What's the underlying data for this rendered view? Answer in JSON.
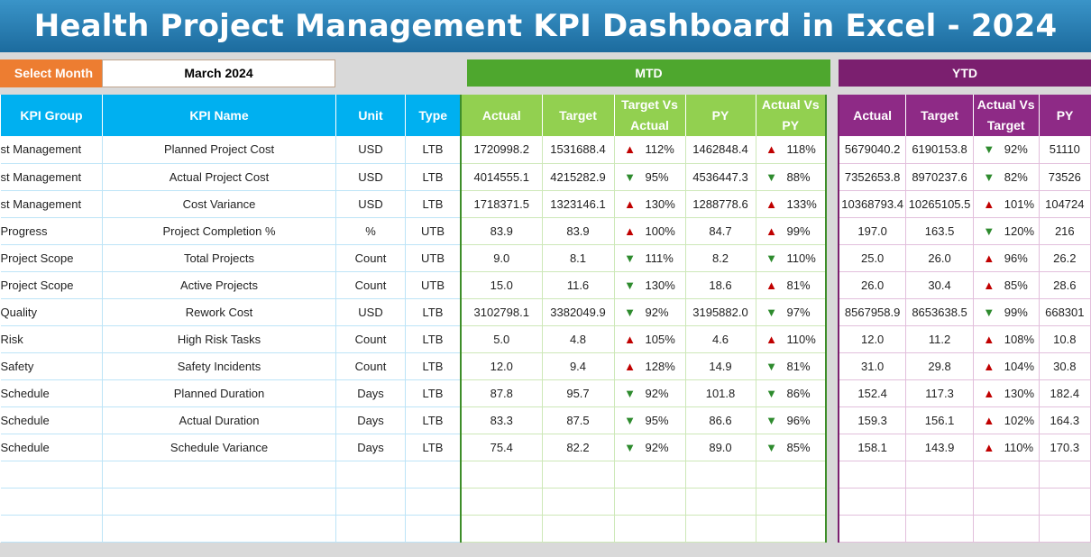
{
  "title": "Health Project Management KPI Dashboard in Excel - 2024",
  "select_month": {
    "label": "Select Month",
    "value": "March 2024"
  },
  "sections": {
    "mtd": "MTD",
    "ytd": "YTD"
  },
  "colors": {
    "up_arrow": "#c00000",
    "down_arrow": "#2e8b2e",
    "kpi_header": "#00b0f0",
    "mtd_header": "#92d050",
    "ytd_header": "#8e2a86",
    "title_bar": "#1c6b9e",
    "select_month_label": "#ed7d31"
  },
  "kpi_table": {
    "headers": [
      "KPI Group",
      "KPI Name",
      "Unit",
      "Type"
    ],
    "rows": [
      [
        "st Management",
        "Planned Project Cost",
        "USD",
        "LTB"
      ],
      [
        "st Management",
        "Actual Project Cost",
        "USD",
        "LTB"
      ],
      [
        "st Management",
        "Cost Variance",
        "USD",
        "LTB"
      ],
      [
        "Progress",
        "Project Completion %",
        "%",
        "UTB"
      ],
      [
        "Project Scope",
        "Total Projects",
        "Count",
        "UTB"
      ],
      [
        "Project Scope",
        "Active Projects",
        "Count",
        "UTB"
      ],
      [
        "Quality",
        "Rework Cost",
        "USD",
        "LTB"
      ],
      [
        "Risk",
        "High Risk Tasks",
        "Count",
        "LTB"
      ],
      [
        "Safety",
        "Safety Incidents",
        "Count",
        "LTB"
      ],
      [
        "Schedule",
        "Planned Duration",
        "Days",
        "LTB"
      ],
      [
        "Schedule",
        "Actual Duration",
        "Days",
        "LTB"
      ],
      [
        "Schedule",
        "Schedule Variance",
        "Days",
        "LTB"
      ]
    ]
  },
  "mtd_table": {
    "headers": [
      "Actual",
      "Target",
      "Target Vs Actual",
      "PY",
      "Actual Vs PY"
    ],
    "rows": [
      [
        "1720998.2",
        "1531688.4",
        "up",
        "112%",
        "1462848.4",
        "up",
        "118%"
      ],
      [
        "4014555.1",
        "4215282.9",
        "down",
        "95%",
        "4536447.3",
        "down",
        "88%"
      ],
      [
        "1718371.5",
        "1323146.1",
        "up",
        "130%",
        "1288778.6",
        "up",
        "133%"
      ],
      [
        "83.9",
        "83.9",
        "up",
        "100%",
        "84.7",
        "up",
        "99%"
      ],
      [
        "9.0",
        "8.1",
        "down",
        "111%",
        "8.2",
        "down",
        "110%"
      ],
      [
        "15.0",
        "11.6",
        "down",
        "130%",
        "18.6",
        "up",
        "81%"
      ],
      [
        "3102798.1",
        "3382049.9",
        "down",
        "92%",
        "3195882.0",
        "down",
        "97%"
      ],
      [
        "5.0",
        "4.8",
        "up",
        "105%",
        "4.6",
        "up",
        "110%"
      ],
      [
        "12.0",
        "9.4",
        "up",
        "128%",
        "14.9",
        "down",
        "81%"
      ],
      [
        "87.8",
        "95.7",
        "down",
        "92%",
        "101.8",
        "down",
        "86%"
      ],
      [
        "83.3",
        "87.5",
        "down",
        "95%",
        "86.6",
        "down",
        "96%"
      ],
      [
        "75.4",
        "82.2",
        "down",
        "92%",
        "89.0",
        "down",
        "85%"
      ]
    ]
  },
  "ytd_table": {
    "headers": [
      "Actual",
      "Target",
      "Actual Vs Target",
      "PY"
    ],
    "rows": [
      [
        "5679040.2",
        "6190153.8",
        "down",
        "92%",
        "51110"
      ],
      [
        "7352653.8",
        "8970237.6",
        "down",
        "82%",
        "73526"
      ],
      [
        "10368793.4",
        "10265105.5",
        "up",
        "101%",
        "104724"
      ],
      [
        "197.0",
        "163.5",
        "down",
        "120%",
        "216"
      ],
      [
        "25.0",
        "26.0",
        "up",
        "96%",
        "26.2"
      ],
      [
        "26.0",
        "30.4",
        "up",
        "85%",
        "28.6"
      ],
      [
        "8567958.9",
        "8653638.5",
        "down",
        "99%",
        "668301"
      ],
      [
        "12.0",
        "11.2",
        "up",
        "108%",
        "10.8"
      ],
      [
        "31.0",
        "29.8",
        "up",
        "104%",
        "30.8"
      ],
      [
        "152.4",
        "117.3",
        "up",
        "130%",
        "182.4"
      ],
      [
        "159.3",
        "156.1",
        "up",
        "102%",
        "164.3"
      ],
      [
        "158.1",
        "143.9",
        "up",
        "110%",
        "170.3"
      ]
    ]
  }
}
